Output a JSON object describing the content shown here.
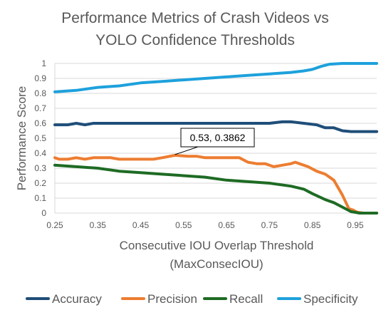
{
  "chart_data": {
    "type": "line",
    "title_lines": [
      "Performance Metrics of Crash Videos vs",
      "YOLO Confidence Thresholds"
    ],
    "xlabel_lines": [
      "Consecutive IOU Overlap Threshold",
      "(MaxConsecIOU)"
    ],
    "ylabel": "Performance Score",
    "xlim": [
      0.25,
      1.0
    ],
    "ylim": [
      0,
      1
    ],
    "x_ticks": [
      "0.25",
      "0.35",
      "0.45",
      "0.55",
      "0.65",
      "0.75",
      "0.85",
      "0.95"
    ],
    "y_ticks": [
      "0",
      "0.1",
      "0.2",
      "0.3",
      "0.4",
      "0.5",
      "0.6",
      "0.7",
      "0.8",
      "0.9",
      "1"
    ],
    "grid": true,
    "legend_position": "bottom",
    "annotation": {
      "text": "0.53, 0.3862",
      "x": 0.53,
      "y": 0.3862
    },
    "series": [
      {
        "name": "Accuracy",
        "color": "#1f4e79",
        "points": [
          [
            0.25,
            0.59
          ],
          [
            0.28,
            0.59
          ],
          [
            0.3,
            0.6
          ],
          [
            0.32,
            0.59
          ],
          [
            0.34,
            0.6
          ],
          [
            0.4,
            0.6
          ],
          [
            0.5,
            0.6
          ],
          [
            0.6,
            0.6
          ],
          [
            0.7,
            0.6
          ],
          [
            0.75,
            0.6
          ],
          [
            0.78,
            0.61
          ],
          [
            0.8,
            0.61
          ],
          [
            0.83,
            0.6
          ],
          [
            0.86,
            0.59
          ],
          [
            0.88,
            0.57
          ],
          [
            0.9,
            0.57
          ],
          [
            0.92,
            0.55
          ],
          [
            0.94,
            0.545
          ],
          [
            1.0,
            0.545
          ]
        ]
      },
      {
        "name": "Precision",
        "color": "#ed7d31",
        "points": [
          [
            0.25,
            0.37
          ],
          [
            0.26,
            0.36
          ],
          [
            0.28,
            0.36
          ],
          [
            0.3,
            0.37
          ],
          [
            0.32,
            0.36
          ],
          [
            0.34,
            0.37
          ],
          [
            0.38,
            0.37
          ],
          [
            0.4,
            0.36
          ],
          [
            0.44,
            0.36
          ],
          [
            0.48,
            0.36
          ],
          [
            0.5,
            0.37
          ],
          [
            0.53,
            0.3862
          ],
          [
            0.56,
            0.38
          ],
          [
            0.58,
            0.38
          ],
          [
            0.6,
            0.37
          ],
          [
            0.62,
            0.37
          ],
          [
            0.64,
            0.37
          ],
          [
            0.66,
            0.37
          ],
          [
            0.68,
            0.37
          ],
          [
            0.7,
            0.34
          ],
          [
            0.72,
            0.33
          ],
          [
            0.74,
            0.33
          ],
          [
            0.76,
            0.31
          ],
          [
            0.78,
            0.32
          ],
          [
            0.8,
            0.33
          ],
          [
            0.81,
            0.34
          ],
          [
            0.82,
            0.33
          ],
          [
            0.84,
            0.31
          ],
          [
            0.86,
            0.28
          ],
          [
            0.88,
            0.26
          ],
          [
            0.9,
            0.22
          ],
          [
            0.92,
            0.12
          ],
          [
            0.935,
            0.03
          ],
          [
            0.945,
            0.02
          ],
          [
            0.955,
            0.005
          ],
          [
            0.97,
            0.0
          ],
          [
            1.0,
            0.0
          ]
        ]
      },
      {
        "name": "Recall",
        "color": "#1e6b24",
        "points": [
          [
            0.25,
            0.32
          ],
          [
            0.3,
            0.31
          ],
          [
            0.35,
            0.3
          ],
          [
            0.4,
            0.28
          ],
          [
            0.45,
            0.27
          ],
          [
            0.5,
            0.26
          ],
          [
            0.55,
            0.25
          ],
          [
            0.6,
            0.24
          ],
          [
            0.65,
            0.22
          ],
          [
            0.7,
            0.21
          ],
          [
            0.75,
            0.2
          ],
          [
            0.8,
            0.18
          ],
          [
            0.83,
            0.16
          ],
          [
            0.85,
            0.13
          ],
          [
            0.88,
            0.09
          ],
          [
            0.9,
            0.07
          ],
          [
            0.92,
            0.04
          ],
          [
            0.94,
            0.01
          ],
          [
            0.96,
            0.0
          ],
          [
            1.0,
            0.0
          ]
        ]
      },
      {
        "name": "Specificity",
        "color": "#1ea1dc",
        "points": [
          [
            0.25,
            0.81
          ],
          [
            0.3,
            0.82
          ],
          [
            0.35,
            0.84
          ],
          [
            0.4,
            0.85
          ],
          [
            0.45,
            0.87
          ],
          [
            0.5,
            0.88
          ],
          [
            0.55,
            0.89
          ],
          [
            0.6,
            0.9
          ],
          [
            0.65,
            0.91
          ],
          [
            0.7,
            0.92
          ],
          [
            0.75,
            0.93
          ],
          [
            0.8,
            0.94
          ],
          [
            0.83,
            0.95
          ],
          [
            0.85,
            0.96
          ],
          [
            0.87,
            0.98
          ],
          [
            0.89,
            0.995
          ],
          [
            0.92,
            1.0
          ],
          [
            1.0,
            1.0
          ]
        ]
      }
    ]
  }
}
